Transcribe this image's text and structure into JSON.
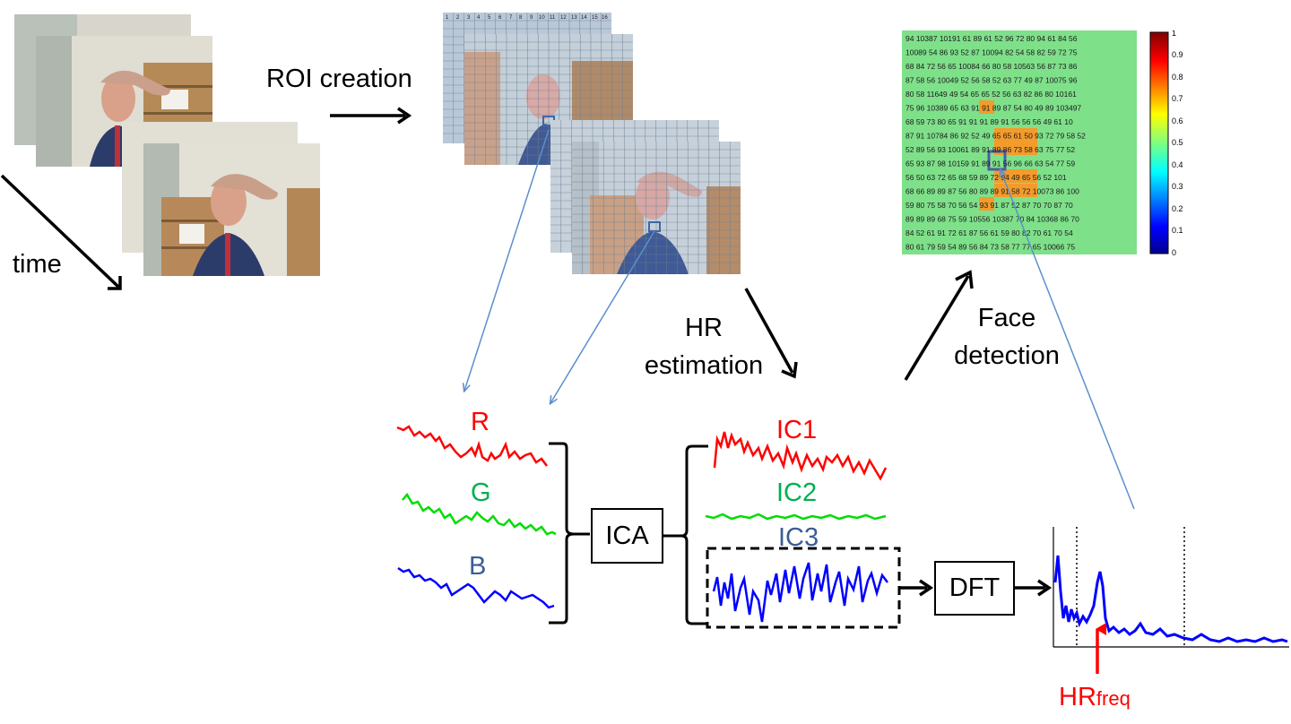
{
  "labels": {
    "roi_creation": "ROI creation",
    "time": "time",
    "hr_line1": "HR",
    "hr_line2": "estimation",
    "face_line1": "Face",
    "face_line2": "detection",
    "ica": "ICA",
    "dft": "DFT",
    "r": "R",
    "g": "G",
    "b": "B",
    "ic1": "IC1",
    "ic2": "IC2",
    "ic3": "IC3",
    "hr_freq_main": "HR",
    "hr_freq_sub": "freq"
  },
  "colorbar_ticks": [
    "1",
    "0.9",
    "0.8",
    "0.7",
    "0.6",
    "0.5",
    "0.4",
    "0.3",
    "0.2",
    "0.1",
    "0"
  ],
  "roi_grid_numbers": [
    "1",
    "2",
    "3",
    "4",
    "5",
    "6",
    "7",
    "8",
    "9",
    "10",
    "11",
    "12",
    "13",
    "14",
    "15",
    "16"
  ],
  "heatmap_rows": [
    "94 10387 10191 61 89 61 52 96 72 80 94 61 84 56",
    "10089 54 86 93 52 87 10094 82 54 58 82 59 72 75",
    "68 84 72 56 65 10084 66 80 58 10563 56 87 73 86",
    "87 58 56 10049 52 56 58 52 63 77 49 87 10075 96",
    "80 58 11649 49 54 65 65 52 56 63 82 86 80 10161",
    "75 96 10389 65 63 91 91 89 87 54 80 49 89 103497",
    "68 59 73 80 65 91 91 91 89 91 56 56 56 49 61 10",
    "87 91 10784 86 92 52 49 65 65 61 50 93 72 79 58 52",
    "52 89 56 93 10061 89 91 89 86 73 58 63 75 77 52",
    "65 93 87 98 10159 91 89 91 56 96 66 63 54 77 59",
    "56 50 63 72 65 68 59 89 72 94 49 65 56 52 101",
    "68 66 89 89 87 56 80 89 89 91 58 72 10073 86 100",
    "59 80 75 58 70 56 54 93 91 87 52 87 70 70 87 70",
    "89 89 89 68 75 59 10556 10387 70 84 10368 86 70",
    "84 52 61 91 72 61 87 56 61 59 80 82 70 61 70 54",
    "80 61 79 59 54 89 56 84 73 58 77 77 65 10066 75"
  ],
  "colors": {
    "r_trace": "#ff0000",
    "g_trace": "#00dd00",
    "b_trace": "#0000ff",
    "r_label": "#ff0000",
    "g_label": "#00b050",
    "b_label": "#3b5d96",
    "ic1_label": "#ff0000",
    "ic2_label": "#00b050",
    "ic3_label": "#3b5d96",
    "pointer": "#5b8fcc",
    "hr_arrow": "#ff0000",
    "heatmap_base": "#7fe08a",
    "heatmap_hot": "#f39b2c"
  }
}
